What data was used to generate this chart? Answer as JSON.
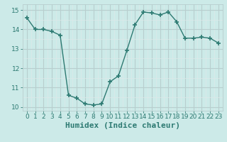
{
  "x": [
    0,
    1,
    2,
    3,
    4,
    5,
    6,
    7,
    8,
    9,
    10,
    11,
    12,
    13,
    14,
    15,
    16,
    17,
    18,
    19,
    20,
    21,
    22,
    23
  ],
  "y": [
    14.6,
    14.0,
    14.0,
    13.9,
    13.7,
    10.6,
    10.45,
    10.15,
    10.1,
    10.15,
    11.3,
    11.6,
    12.9,
    14.25,
    14.9,
    14.85,
    14.75,
    14.9,
    14.4,
    13.55,
    13.55,
    13.6,
    13.55,
    13.3
  ],
  "line_color": "#2d7a72",
  "marker": "+",
  "marker_size": 5,
  "marker_lw": 1.2,
  "bg_color": "#cceae8",
  "grid_color_major": "#b8cece",
  "grid_color_minor": "#dde8e8",
  "xlabel": "Humidex (Indice chaleur)",
  "xlabel_fontsize": 8,
  "ylim": [
    9.8,
    15.3
  ],
  "xlim": [
    -0.5,
    23.5
  ],
  "yticks": [
    10,
    11,
    12,
    13,
    14,
    15
  ],
  "xtick_labels": [
    "0",
    "1",
    "2",
    "3",
    "4",
    "5",
    "6",
    "7",
    "8",
    "9",
    "10",
    "11",
    "12",
    "13",
    "14",
    "15",
    "16",
    "17",
    "18",
    "19",
    "20",
    "21",
    "22",
    "23"
  ],
  "tick_color": "#2d7a72",
  "tick_fontsize": 6.5,
  "line_width": 1.0
}
